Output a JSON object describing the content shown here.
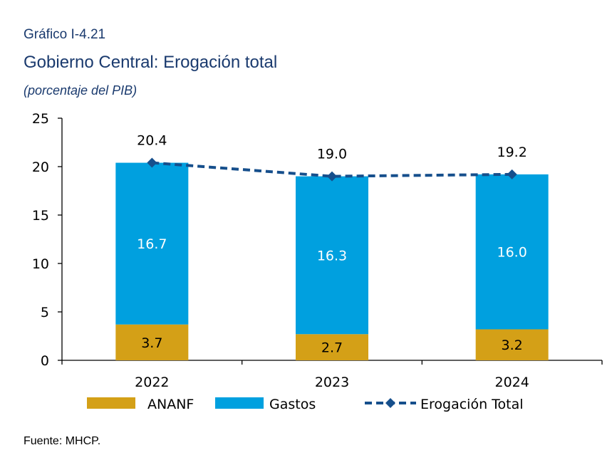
{
  "header": {
    "label": "Gráfico I-4.21",
    "title": "Gobierno Central: Erogación total",
    "subtitle": "(porcentaje del PIB)"
  },
  "source": "Fuente: MHCP.",
  "colors": {
    "ananf": "#D4A017",
    "gastos": "#00A0DF",
    "erogacion": "#164F8C",
    "axis": "#000000",
    "title": "#1A3A6E"
  },
  "chart_data": {
    "type": "bar",
    "stacked": true,
    "categories": [
      "2022",
      "2023",
      "2024"
    ],
    "series": [
      {
        "name": "ANANF",
        "kind": "bar",
        "values": [
          3.7,
          2.7,
          3.2
        ],
        "value_labels": [
          "3.7",
          "2.7",
          "3.2"
        ]
      },
      {
        "name": "Gastos",
        "kind": "bar",
        "values": [
          16.7,
          16.3,
          16.0
        ],
        "value_labels": [
          "16.7",
          "16.3",
          "16.0"
        ]
      },
      {
        "name": "Erogación Total",
        "kind": "line",
        "style": "dashed",
        "marker": "diamond",
        "values": [
          20.4,
          19.0,
          19.2
        ],
        "value_labels": [
          "20.4",
          "19.0",
          "19.2"
        ]
      }
    ],
    "ylim": [
      0,
      25
    ],
    "yticks": [
      0,
      5,
      10,
      15,
      20,
      25
    ],
    "ytick_labels": [
      "0",
      "5",
      "10",
      "15",
      "20",
      "25"
    ],
    "grid": false,
    "legend_position": "bottom"
  }
}
